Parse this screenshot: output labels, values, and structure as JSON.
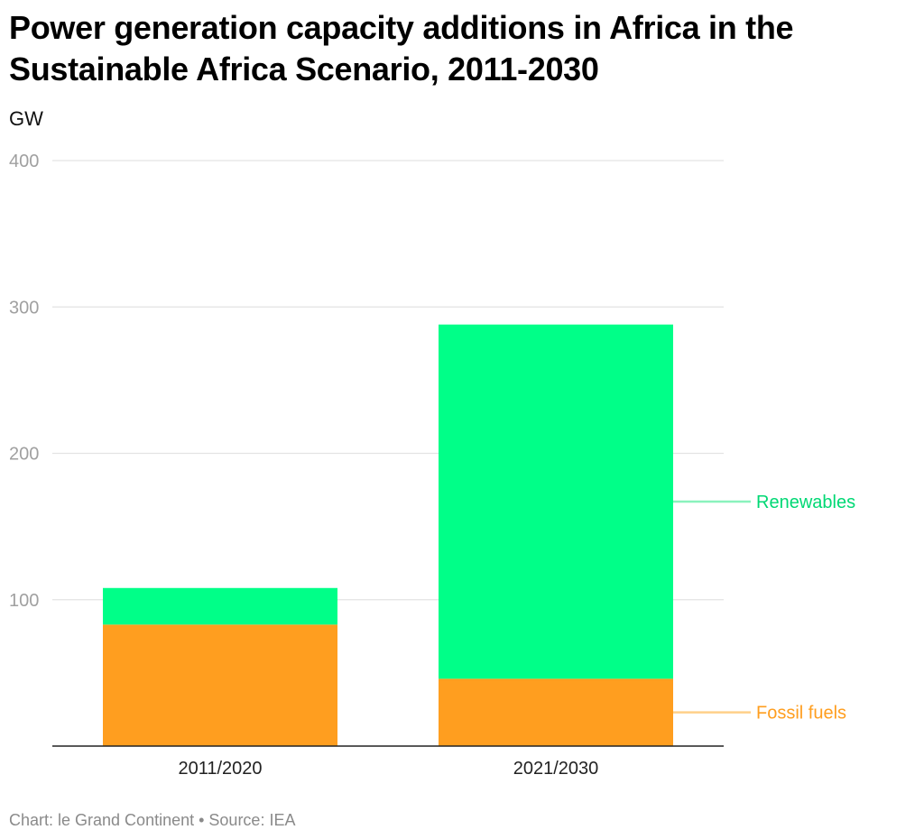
{
  "title": "Power generation capacity additions in Africa in the Sustainable Africa Scenario, 2011-2030",
  "unit_label": "GW",
  "footer": "Chart: le Grand Continent • Source: IEA",
  "colors": {
    "renewables": "#00ff88",
    "fossil": "#ff9e1f",
    "renewables_leader": "#8af2bd",
    "fossil_leader": "#ffd08a",
    "grid": "#e3e3e3",
    "axis": "#222222"
  },
  "chart_data": {
    "type": "bar",
    "stacked": true,
    "categories": [
      "2011/2020",
      "2021/2030"
    ],
    "series": [
      {
        "name": "Fossil fuels",
        "values": [
          83,
          46
        ]
      },
      {
        "name": "Renewables",
        "values": [
          25,
          242
        ]
      }
    ],
    "yticks": [
      100,
      200,
      300,
      400
    ],
    "ylim": [
      0,
      400
    ],
    "grid": true,
    "legend": "right, inline labels"
  }
}
